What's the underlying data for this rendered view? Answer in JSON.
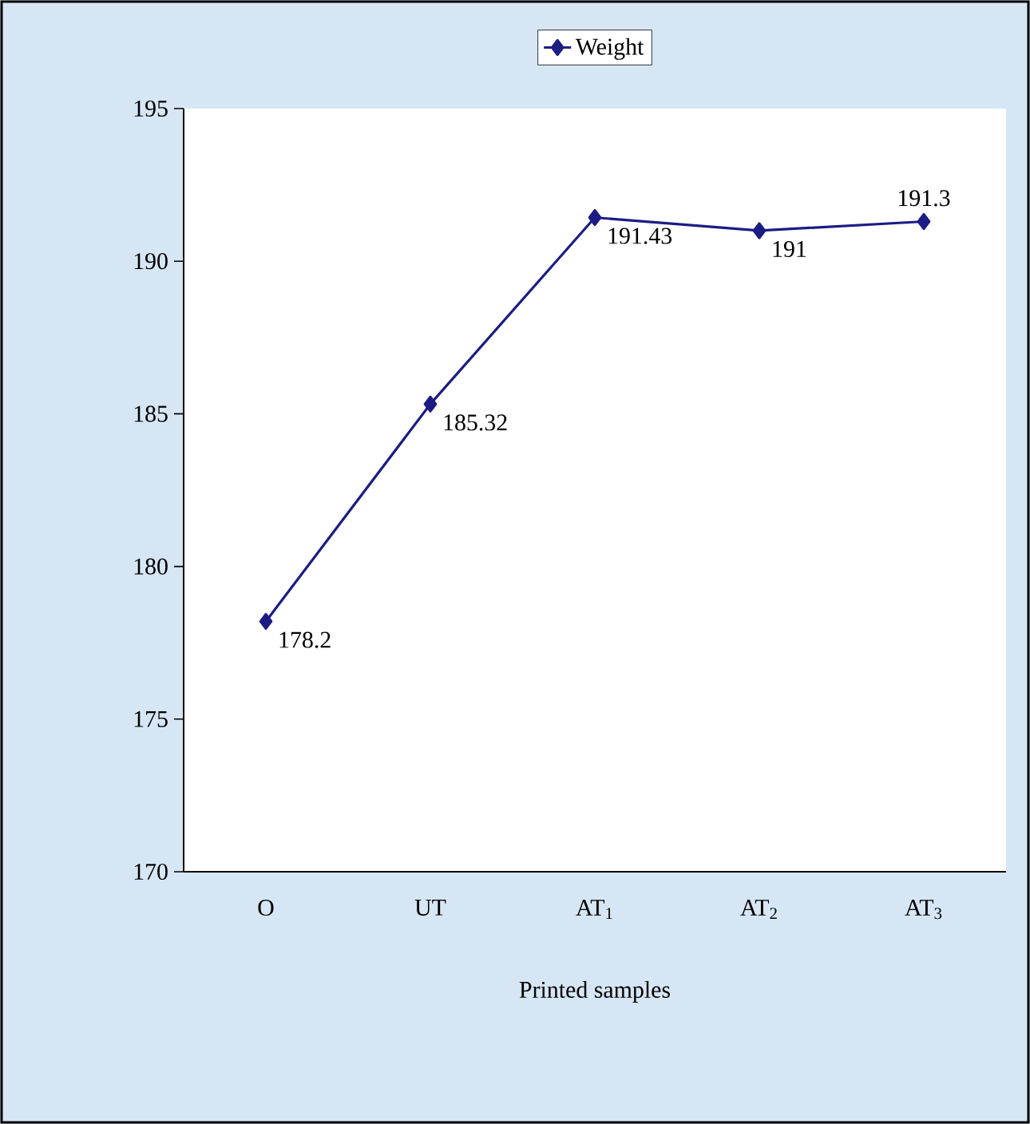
{
  "chart_data": {
    "type": "line",
    "xlabel": "Printed samples",
    "categories": [
      "O",
      "UT",
      "AT$_{1}$",
      "AT$_{2}$",
      "AT$_{3}$"
    ],
    "series": [
      {
        "name": "Weight",
        "color": "#1c1c84",
        "values": [
          178.2,
          185.32,
          191.43,
          191,
          191.3
        ]
      }
    ],
    "ylim": [
      170,
      195
    ],
    "yticks": [
      170,
      175,
      180,
      185,
      190,
      195
    ],
    "data_labels": true,
    "legend": "top",
    "marker": "diamond",
    "line_style": "solid",
    "grid": false
  }
}
